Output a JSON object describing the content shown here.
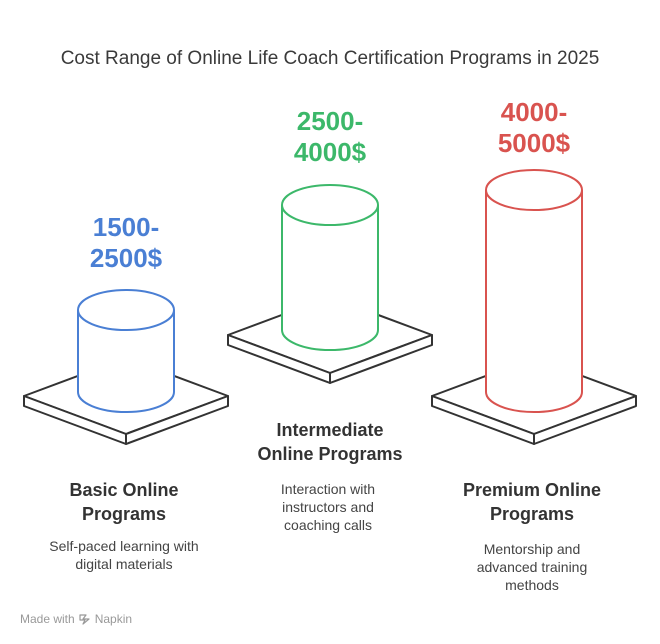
{
  "title": "Cost Range of Online Life Coach Certification Programs in 2025",
  "tiers": [
    {
      "price_line1": "1500-",
      "price_line2": "2500$",
      "label_line1": "Basic Online",
      "label_line2": "Programs",
      "desc_lines": [
        "Self-paced learning with",
        "digital materials"
      ],
      "color": "#4a7fd4"
    },
    {
      "price_line1": "2500-",
      "price_line2": "4000$",
      "label_line1": "Intermediate",
      "label_line2": "Online Programs",
      "desc_lines": [
        "Interaction with",
        "instructors and",
        "coaching calls"
      ],
      "color": "#3cb86a"
    },
    {
      "price_line1": "4000-",
      "price_line2": "5000$",
      "label_line1": "Premium Online",
      "label_line2": "Programs",
      "desc_lines": [
        "Mentorship and",
        "advanced training",
        "methods"
      ],
      "color": "#d9534f"
    }
  ],
  "footer": {
    "made_with": "Made with",
    "brand": "Napkin"
  },
  "icons": {
    "brand": "napkin-logo-icon"
  }
}
